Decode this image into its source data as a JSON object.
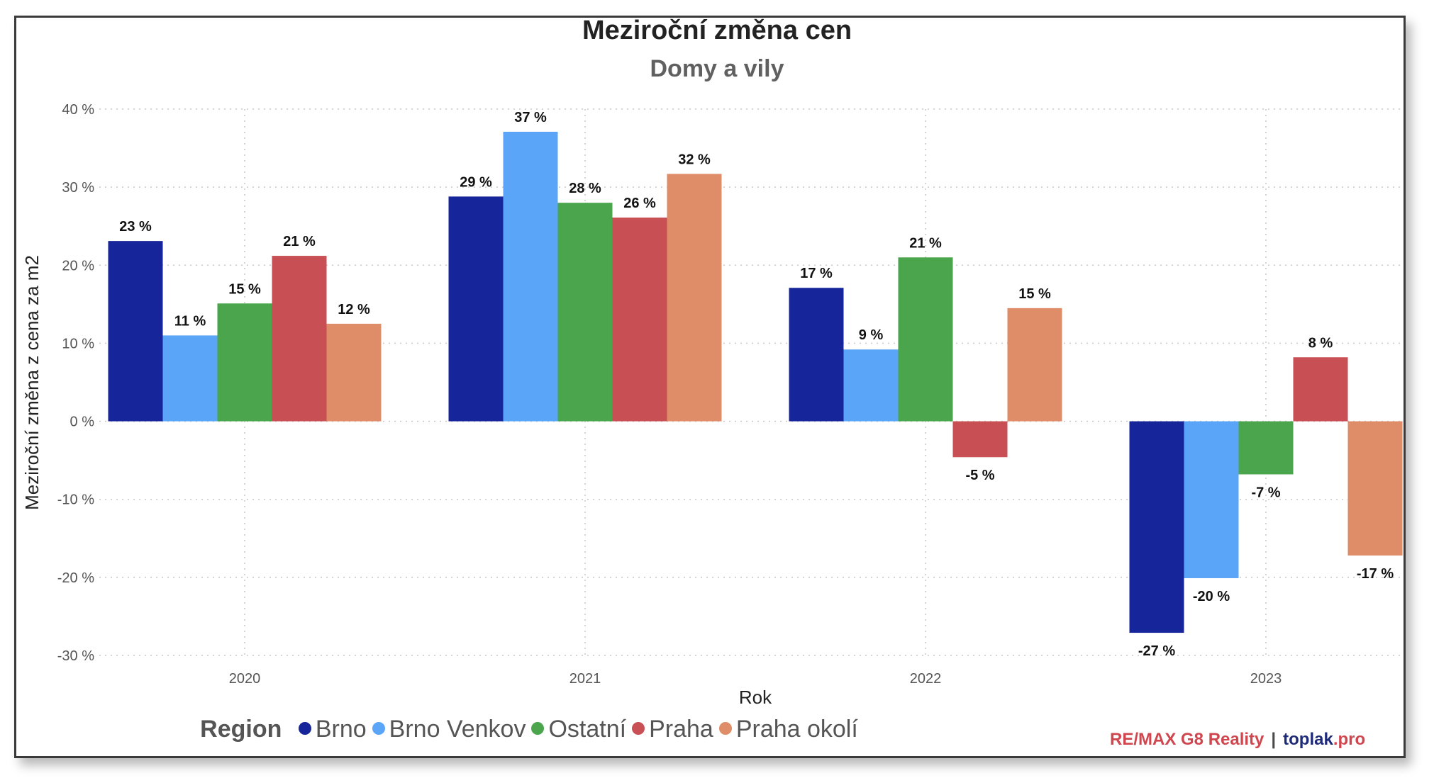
{
  "chart_data": {
    "type": "bar",
    "title": "Meziroční změna cen",
    "subtitle": "Domy a vily",
    "xlabel": "Rok",
    "ylabel": "Meziroční změna z cena za m2",
    "categories": [
      "2020",
      "2021",
      "2022",
      "2023"
    ],
    "ylim": [
      -30,
      40
    ],
    "yticks": [
      40,
      30,
      20,
      10,
      0,
      -10,
      -20,
      -30
    ],
    "ytick_labels": [
      "40 %",
      "30 %",
      "20 %",
      "10 %",
      "0 %",
      "-10 %",
      "-20 %",
      "-30 %"
    ],
    "grid": true,
    "legend": {
      "title": "Region",
      "placement": "bottom"
    },
    "series": [
      {
        "name": "Brno",
        "color": "#17259a",
        "values": [
          23.1,
          28.8,
          17.1,
          -27.1
        ],
        "labels": [
          "23 %",
          "29 %",
          "17 %",
          "-27 %"
        ]
      },
      {
        "name": "Brno Venkov",
        "color": "#5aa5f7",
        "values": [
          11.0,
          37.1,
          9.2,
          -20.1
        ],
        "labels": [
          "11 %",
          "37 %",
          "9 %",
          "-20 %"
        ]
      },
      {
        "name": "Ostatní",
        "color": "#4aa54c",
        "values": [
          15.1,
          28.0,
          21.0,
          -6.8
        ],
        "labels": [
          "15 %",
          "28 %",
          "21 %",
          "-7 %"
        ]
      },
      {
        "name": "Praha",
        "color": "#c84f53",
        "values": [
          21.2,
          26.1,
          -4.6,
          8.2
        ],
        "labels": [
          "21 %",
          "26 %",
          "-5 %",
          "8 %"
        ]
      },
      {
        "name": "Praha okolí",
        "color": "#df8c68",
        "values": [
          12.5,
          31.7,
          14.5,
          -17.2
        ],
        "labels": [
          "12 %",
          "32 %",
          "15 %",
          "-17 %"
        ]
      }
    ]
  },
  "branding": {
    "remax": "RE/MAX G8 Reality",
    "separator": "|",
    "toplak": "toplak",
    "toplak_suffix": ".pro"
  }
}
